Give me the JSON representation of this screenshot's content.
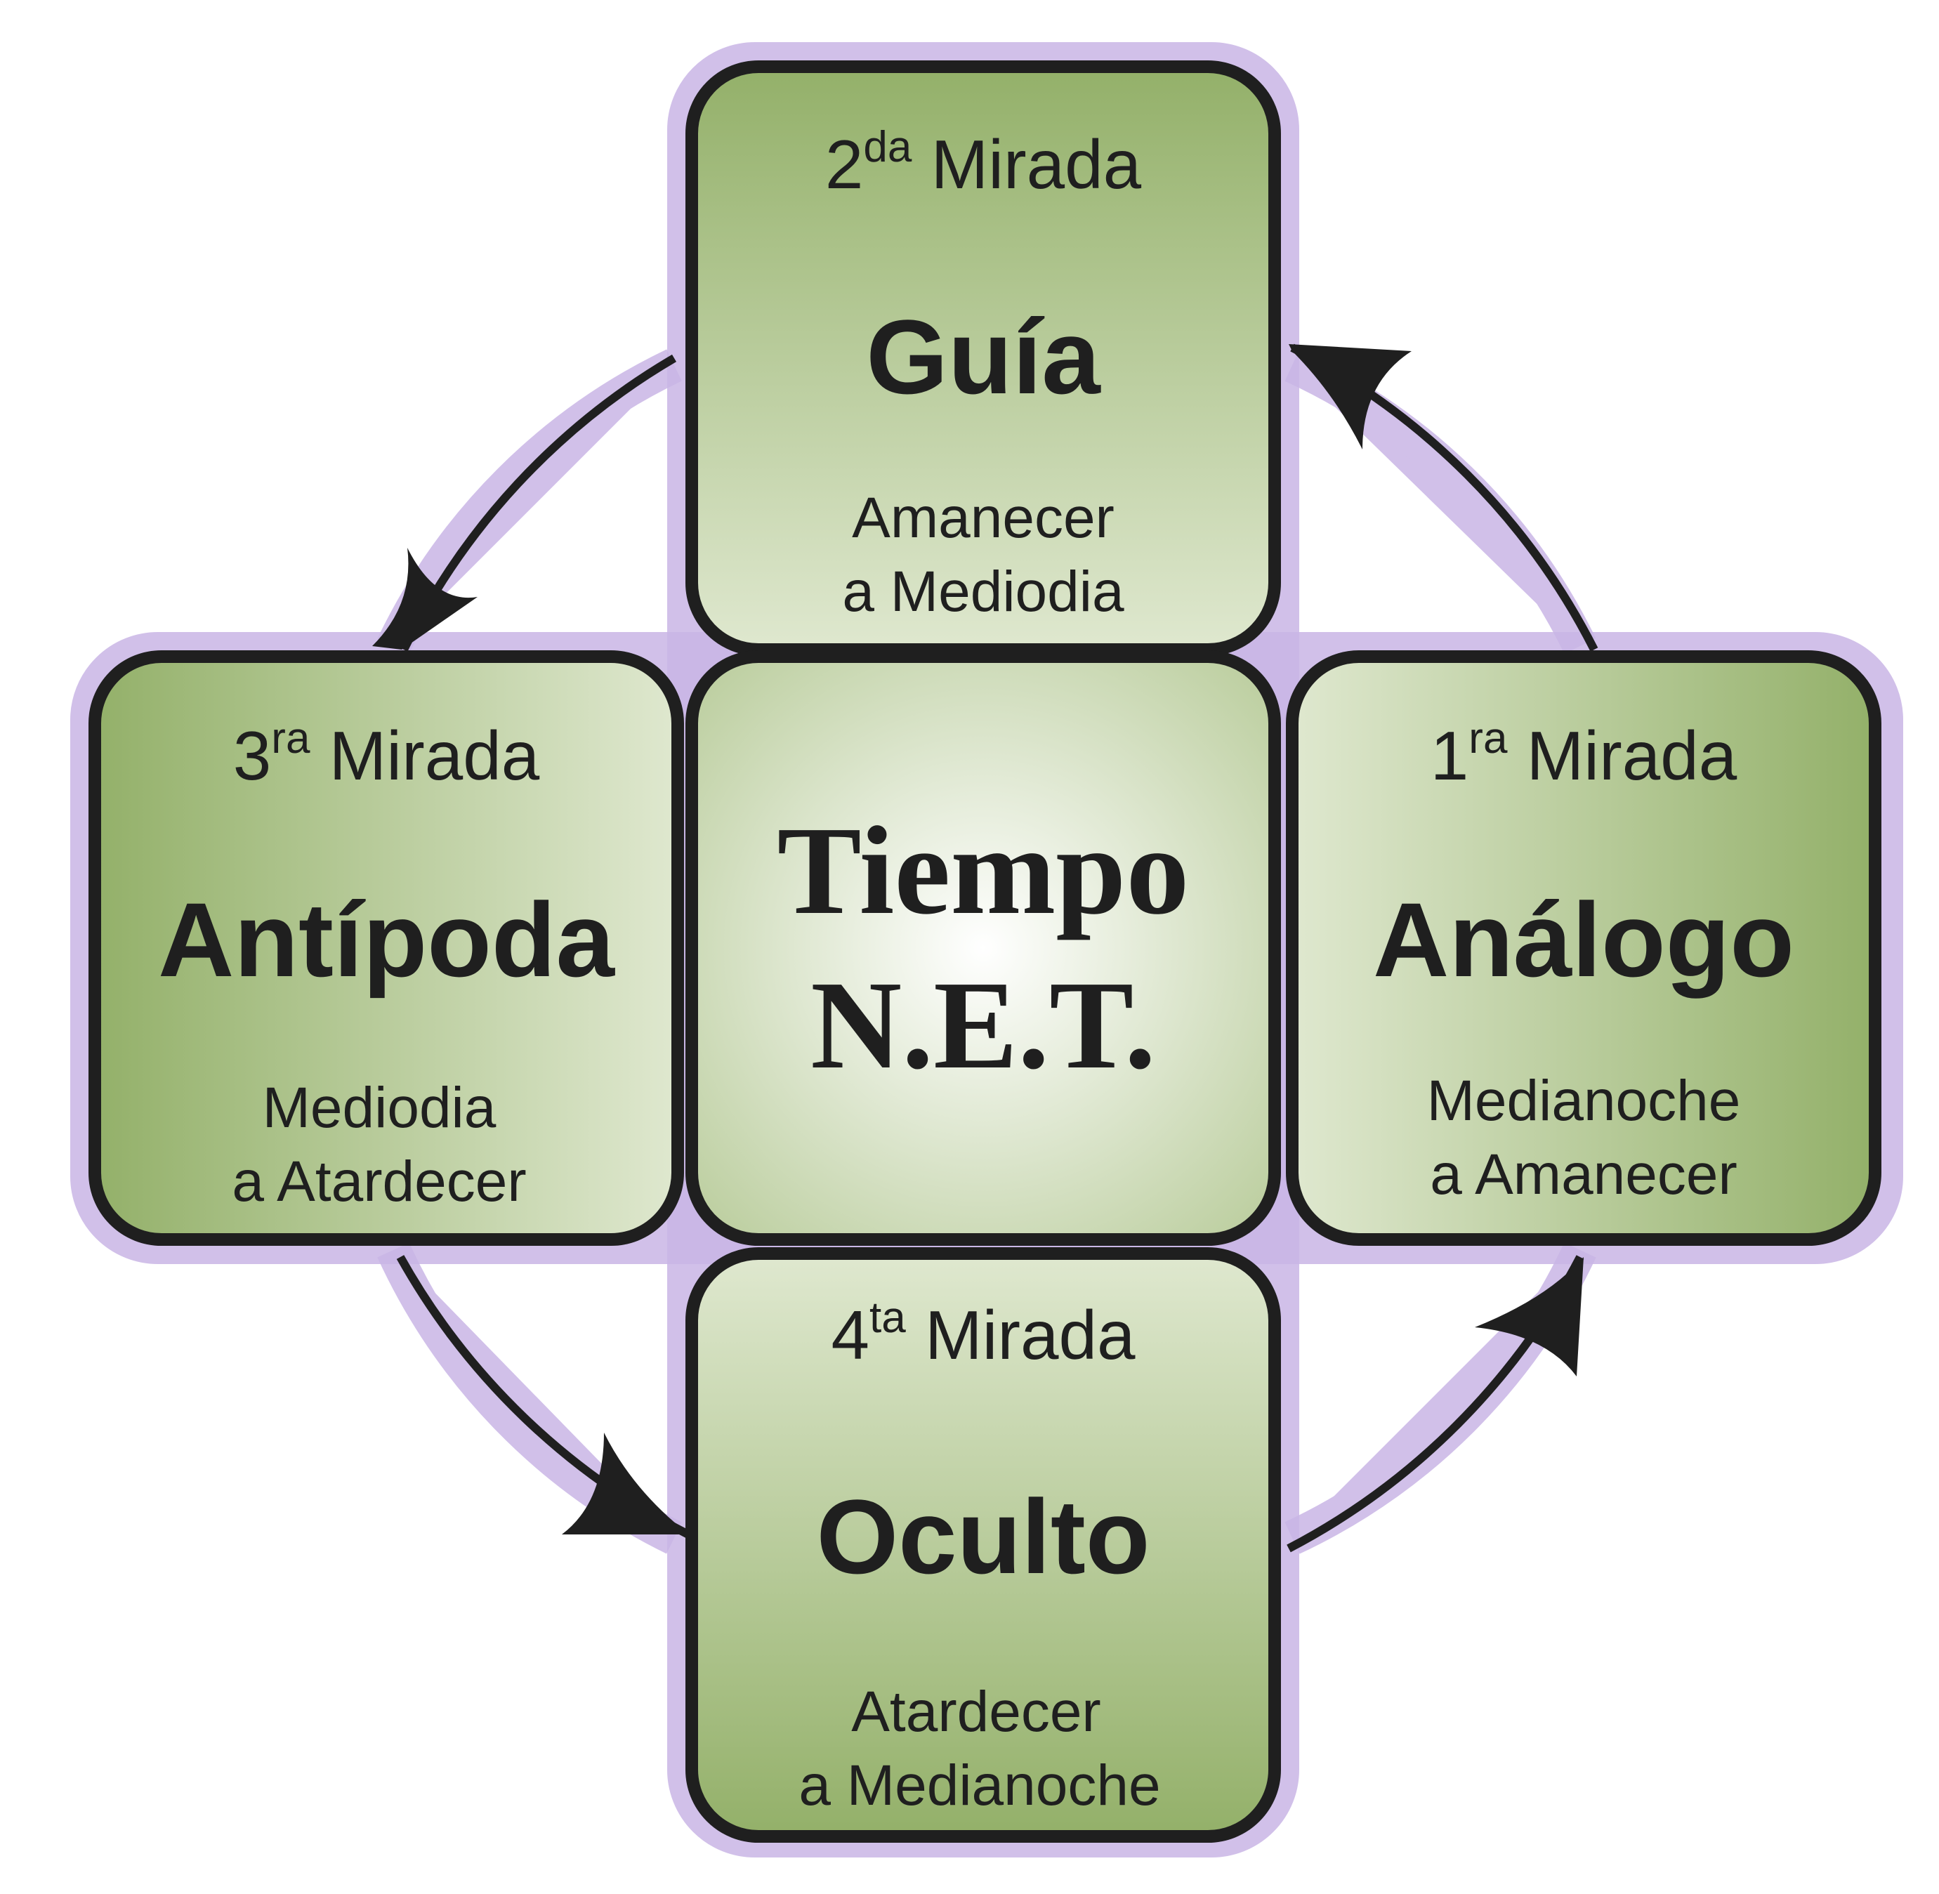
{
  "center": {
    "line1": "Tiempo",
    "line2": "N.E.T."
  },
  "stages": {
    "top": {
      "ordinal_number": "2",
      "ordinal_suffix": "da",
      "ordinal_word": " Mirada",
      "name": "Guía",
      "period_line1": "Amanecer",
      "period_line2": "a Mediodia"
    },
    "left": {
      "ordinal_number": "3",
      "ordinal_suffix": "ra",
      "ordinal_word": " Mirada",
      "name": "Antípoda",
      "period_line1": "Mediodia",
      "period_line2": "a Atardecer"
    },
    "right": {
      "ordinal_number": "1",
      "ordinal_suffix": "ra",
      "ordinal_word": " Mirada",
      "name": "Análogo",
      "period_line1": "Medianoche",
      "period_line2": "a Amanecer"
    },
    "bottom": {
      "ordinal_number": "4",
      "ordinal_suffix": "ta",
      "ordinal_word": " Mirada",
      "name": "Oculto",
      "period_line1": "Atardecer",
      "period_line2": "a Medianoche"
    }
  },
  "colors": {
    "box_green_light": "#dfe8cf",
    "box_green_dark": "#93b069",
    "center_light": "#ffffff",
    "center_dark": "#b9cc9b",
    "glow_purple": "#c9b6e6",
    "outline": "#1f1f1f"
  }
}
